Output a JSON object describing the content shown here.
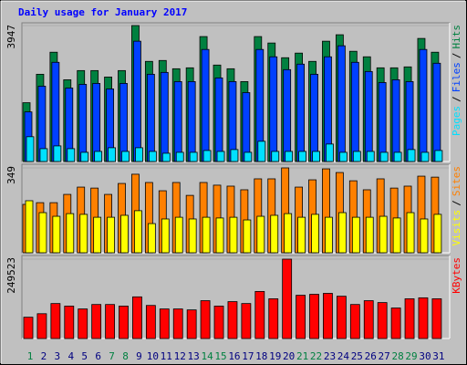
{
  "chart_data": {
    "type": "bar",
    "title": "Daily usage for January 2017",
    "categories": [
      "1",
      "2",
      "3",
      "4",
      "5",
      "6",
      "7",
      "8",
      "9",
      "10",
      "11",
      "12",
      "13",
      "14",
      "15",
      "16",
      "17",
      "18",
      "19",
      "20",
      "21",
      "22",
      "23",
      "24",
      "25",
      "26",
      "27",
      "28",
      "29",
      "30",
      "31"
    ],
    "label_colors": [
      "#008040",
      "#000080",
      "#000080",
      "#000080",
      "#000080",
      "#000080",
      "#008040",
      "#008040",
      "#000080",
      "#000080",
      "#000080",
      "#000080",
      "#000080",
      "#008040",
      "#008040",
      "#000080",
      "#000080",
      "#000080",
      "#000080",
      "#000080",
      "#008040",
      "#008040",
      "#000080",
      "#000080",
      "#000080",
      "#000080",
      "#000080",
      "#008040",
      "#008040",
      "#000080",
      "#000080"
    ],
    "legend_separator": "/",
    "panels": [
      {
        "ylim": [
          0,
          3947
        ],
        "yticks": [
          3947
        ],
        "series": [
          {
            "name": "Hits",
            "color": "#008040",
            "values": [
              1707,
              2533,
              3173,
              2373,
              2640,
              2640,
              2453,
              2640,
              3947,
              2907,
              2933,
              2693,
              2720,
              3627,
              2800,
              2693,
              2320,
              3627,
              3440,
              3013,
              3147,
              2907,
              3493,
              3680,
              3200,
              3040,
              2720,
              2720,
              2747,
              3573,
              3173
            ]
          },
          {
            "name": "Files",
            "color": "#0040ff",
            "values": [
              1440,
              2187,
              2880,
              2133,
              2240,
              2267,
              2107,
              2267,
              3493,
              2533,
              2587,
              2320,
              2320,
              3253,
              2427,
              2320,
              2000,
              3253,
              3040,
              2667,
              2827,
              2533,
              3040,
              3360,
              2880,
              2613,
              2293,
              2373,
              2320,
              3253,
              2853
            ]
          },
          {
            "name": "Pages",
            "color": "#00e0ff",
            "values": [
              720,
              373,
              453,
              373,
              267,
              293,
              400,
              293,
              400,
              293,
              240,
              267,
              267,
              320,
              293,
              347,
              267,
              587,
              293,
              293,
              293,
              293,
              507,
              267,
              293,
              293,
              267,
              267,
              347,
              267,
              320
            ]
          }
        ]
      },
      {
        "ylim": [
          0,
          349
        ],
        "yticks": [
          349
        ],
        "series": [
          {
            "name": "Sites",
            "color": "#ff8000",
            "values": [
              199,
              206,
              206,
              240,
              270,
              266,
              240,
              285,
              323,
              289,
              255,
              289,
              236,
              289,
              278,
              274,
              259,
              304,
              304,
              349,
              270,
              300,
              345,
              330,
              296,
              259,
              304,
              266,
              274,
              315,
              311
            ]
          },
          {
            "name": "Visits",
            "color": "#ffff00",
            "values": [
              214,
              165,
              150,
              161,
              158,
              146,
              146,
              154,
              173,
              120,
              139,
              146,
              139,
              146,
              143,
              146,
              135,
              150,
              154,
              161,
              146,
              158,
              146,
              165,
              146,
              146,
              150,
              143,
              165,
              139,
              158
            ]
          }
        ]
      },
      {
        "ylim": [
          0,
          249523
        ],
        "yticks": [
          249523
        ],
        "series": [
          {
            "name": "KBytes",
            "color": "#ff0000",
            "values": [
              67000,
              78000,
              110000,
              102000,
              93000,
              107000,
              107000,
              102000,
              131000,
              104000,
              93000,
              93000,
              90000,
              119000,
              102000,
              116000,
              110000,
              148000,
              125000,
              249523,
              136000,
              139000,
              142000,
              133000,
              107000,
              119000,
              113000,
              96000,
              125000,
              128000,
              125000
            ]
          }
        ]
      }
    ]
  }
}
